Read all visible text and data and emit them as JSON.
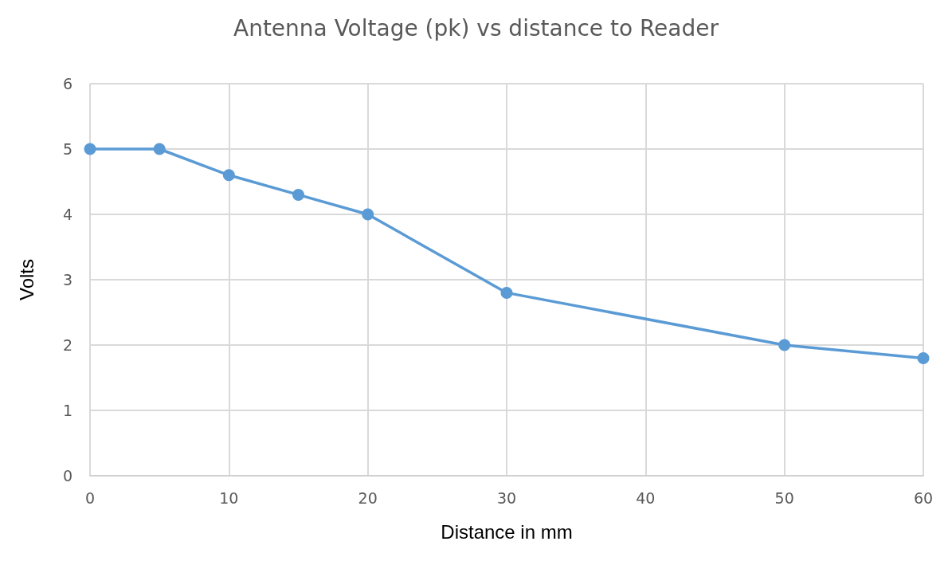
{
  "chart_data": {
    "type": "line",
    "title": "Antenna Voltage (pk) vs distance to Reader",
    "xlabel": "Distance in mm",
    "ylabel": "Volts",
    "x": [
      0,
      5,
      10,
      15,
      20,
      30,
      50,
      60
    ],
    "series": [
      {
        "color": "#5b9bd5",
        "values": [
          5,
          5,
          4.6,
          4.3,
          4.0,
          2.8,
          2.0,
          1.8
        ]
      }
    ],
    "xlim": [
      0,
      60
    ],
    "xticks": [
      0,
      10,
      20,
      30,
      40,
      50,
      60
    ],
    "ylim": [
      0,
      6
    ],
    "yticks": [
      0,
      1,
      2,
      3,
      4,
      5,
      6
    ],
    "grid": true,
    "marker": "circle",
    "line_style": "solid"
  }
}
